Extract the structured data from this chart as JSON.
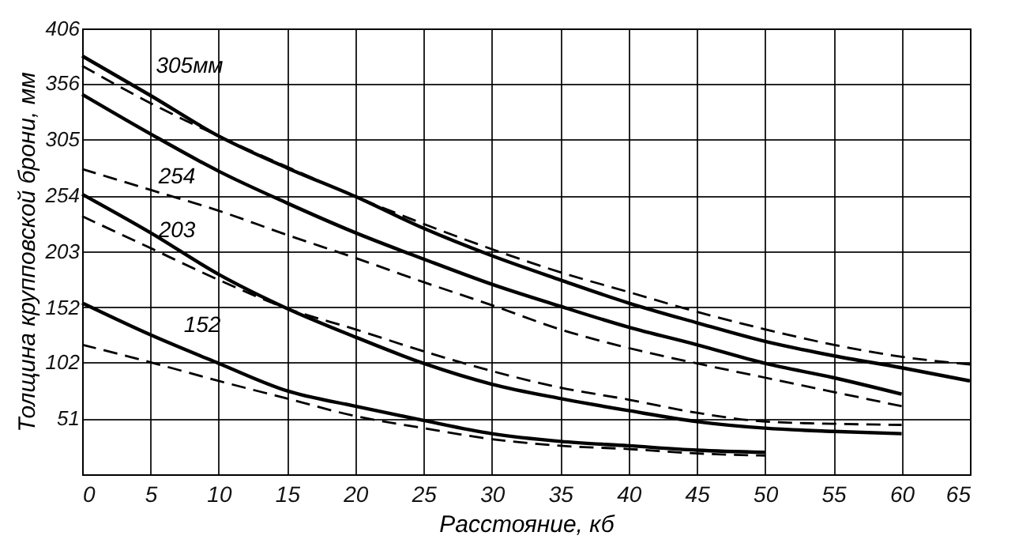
{
  "chart_data": {
    "type": "line",
    "xlabel": "Расстояние, кб",
    "ylabel": "Толщина крупповской брони, мм",
    "x": [
      0,
      5,
      10,
      15,
      20,
      25,
      30,
      35,
      40,
      45,
      50,
      55,
      60,
      65
    ],
    "xlim": [
      0,
      65
    ],
    "xticks": [
      0,
      5,
      10,
      15,
      20,
      25,
      30,
      35,
      40,
      45,
      50,
      55,
      60,
      65
    ],
    "ylim": [
      0,
      406
    ],
    "yticks": [
      51,
      102,
      152,
      203,
      254,
      305,
      356,
      406
    ],
    "grid": true,
    "series": [
      {
        "color": "#000000",
        "line_style": "solid",
        "values": [
          381,
          345,
          308,
          279,
          253,
          224,
          199,
          177,
          156,
          138,
          121,
          108,
          97,
          85
        ]
      },
      {
        "color": "#000000",
        "line_style": "dashed",
        "values": [
          372,
          338,
          308,
          280,
          253,
          228,
          205,
          184,
          166,
          148,
          132,
          118,
          107,
          100
        ]
      },
      {
        "color": "#000000",
        "line_style": "solid",
        "values": [
          346,
          310,
          276,
          247,
          220,
          196,
          173,
          153,
          134,
          118,
          101,
          88,
          73,
          null
        ]
      },
      {
        "color": "#000000",
        "line_style": "dashed",
        "values": [
          278,
          259,
          240,
          218,
          197,
          175,
          154,
          132,
          115,
          101,
          88,
          75,
          62,
          null
        ]
      },
      {
        "color": "#000000",
        "line_style": "solid",
        "values": [
          255,
          220,
          182,
          151,
          125,
          101,
          82,
          69,
          58,
          48,
          42,
          39,
          37,
          null
        ]
      },
      {
        "color": "#000000",
        "line_style": "dashed",
        "values": [
          235,
          206,
          177,
          151,
          132,
          112,
          94,
          79,
          68,
          56,
          48,
          46,
          45,
          null
        ]
      },
      {
        "color": "#000000",
        "line_style": "solid",
        "values": [
          156,
          127,
          101,
          76,
          62,
          49,
          37,
          30,
          26,
          22,
          20,
          null,
          null,
          null
        ]
      },
      {
        "color": "#000000",
        "line_style": "dashed",
        "values": [
          118,
          102,
          85,
          69,
          53,
          42,
          32,
          26,
          23,
          19,
          17,
          null,
          null,
          null
        ]
      }
    ],
    "annotations": [
      "305мм",
      "254",
      "203",
      "152"
    ]
  }
}
